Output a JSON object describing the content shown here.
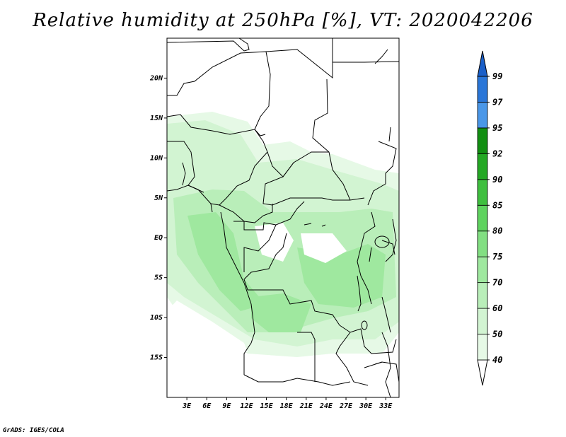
{
  "title": "Relative humidity at 250hPa [%], VT: 2020042206",
  "credit": "GrADS: IGES/COLA",
  "map": {
    "lon_range": [
      0,
      35
    ],
    "lat_range": [
      -20,
      25
    ],
    "lat_ticks": [
      {
        "value": 20,
        "label": "20N"
      },
      {
        "value": 15,
        "label": "15N"
      },
      {
        "value": 10,
        "label": "10N"
      },
      {
        "value": 5,
        "label": "5N"
      },
      {
        "value": 0,
        "label": "EQ"
      },
      {
        "value": -5,
        "label": "5S"
      },
      {
        "value": -10,
        "label": "10S"
      },
      {
        "value": -15,
        "label": "15S"
      }
    ],
    "lon_ticks": [
      {
        "value": 3,
        "label": "3E"
      },
      {
        "value": 6,
        "label": "6E"
      },
      {
        "value": 9,
        "label": "9E"
      },
      {
        "value": 12,
        "label": "12E"
      },
      {
        "value": 15,
        "label": "15E"
      },
      {
        "value": 18,
        "label": "18E"
      },
      {
        "value": 21,
        "label": "21E"
      },
      {
        "value": 24,
        "label": "24E"
      },
      {
        "value": 27,
        "label": "27E"
      },
      {
        "value": 30,
        "label": "30E"
      },
      {
        "value": 33,
        "label": "33E"
      }
    ]
  },
  "colorbar": {
    "levels": [
      {
        "label": "40",
        "color": "#e6f9e6"
      },
      {
        "label": "50",
        "color": "#d2f4d2"
      },
      {
        "label": "60",
        "color": "#b9eeb9"
      },
      {
        "label": "70",
        "color": "#9fe89f"
      },
      {
        "label": "75",
        "color": "#82df82"
      },
      {
        "label": "80",
        "color": "#5fd35f"
      },
      {
        "label": "85",
        "color": "#3fbf3f"
      },
      {
        "label": "90",
        "color": "#24a824"
      },
      {
        "label": "92",
        "color": "#128f12"
      },
      {
        "label": "95",
        "color": "#4a97e8"
      },
      {
        "label": "97",
        "color": "#2a76d8"
      },
      {
        "label": "99",
        "color": "#1a5fc8"
      }
    ],
    "top_arrow_color": "#1a5fc8"
  }
}
